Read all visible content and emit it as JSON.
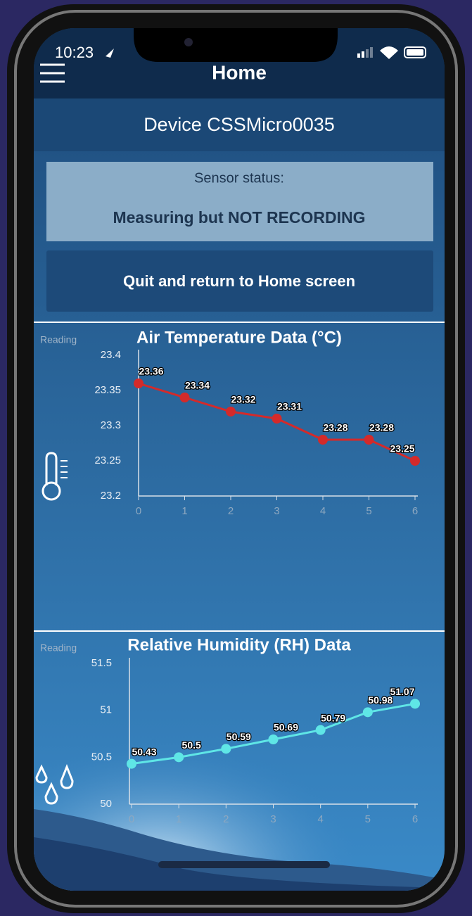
{
  "status_bar": {
    "time": "10:23"
  },
  "header": {
    "title": "Home"
  },
  "device": "Device CSSMicro0035",
  "sensor_status": {
    "label": "Sensor status:",
    "value": "Measuring but NOT RECORDING"
  },
  "button": "Quit and return to Home screen",
  "chart_data": [
    {
      "type": "line",
      "title": "Air Temperature Data (°C)",
      "y_label": "Reading",
      "categories": [
        "0",
        "1",
        "2",
        "3",
        "4",
        "5",
        "6"
      ],
      "series": [
        {
          "name": "Air Temperature",
          "color": "#d42a2a",
          "values": [
            23.36,
            23.34,
            23.32,
            23.31,
            23.28,
            23.28,
            23.25
          ]
        }
      ],
      "ylim": [
        23.2,
        23.4
      ],
      "yticks": [
        23.2,
        23.25,
        23.3,
        23.35,
        23.4
      ]
    },
    {
      "type": "line",
      "title": "Relative Humidity (RH) Data",
      "y_label": "Reading",
      "categories": [
        "0",
        "1",
        "2",
        "3",
        "4",
        "5",
        "6"
      ],
      "series": [
        {
          "name": "Relative Humidity",
          "color": "#5fe6e6",
          "values": [
            50.43,
            50.5,
            50.59,
            50.69,
            50.79,
            50.98,
            51.07
          ]
        }
      ],
      "ylim": [
        50,
        51.5
      ],
      "yticks": [
        50,
        50.5,
        51,
        51.5
      ]
    }
  ]
}
